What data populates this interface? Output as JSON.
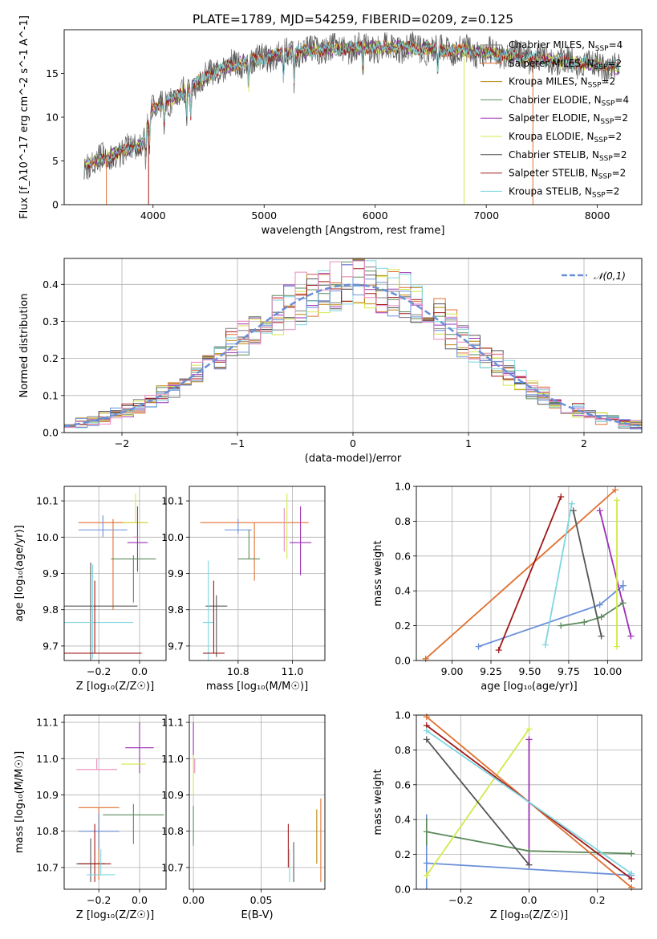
{
  "colors": {
    "Chabrier MILES": "#7f7f7f",
    "Salpeter MILES": "#e07030",
    "Kroupa MILES": "#b8860b",
    "Chabrier ELODIE": "#5b8a5b",
    "Salpeter ELODIE": "#9b30b5",
    "Kroupa ELODIE": "#d4e84a",
    "Chabrier STELIB": "#555555",
    "Salpeter STELIB": "#a01818",
    "Kroupa STELIB": "#7fd6e0",
    "blue": "#6a8fd8",
    "pink": "#e88cc0",
    "grid": "#b0b0b0"
  },
  "chart_data": [
    {
      "id": "spectrum",
      "type": "line",
      "title": "PLATE=1789, MJD=54259, FIBERID=0209, z=0.125",
      "xlabel": "wavelength [Angstrom, rest frame]",
      "ylabel": "Flux [f_λ10^-17 erg cm^-2 s^-1 A^-1]",
      "xlim": [
        3200,
        8400
      ],
      "ylim": [
        0,
        20
      ],
      "xticks": [
        "4000",
        "5000",
        "6000",
        "7000",
        "8000"
      ],
      "yticks": [
        "0",
        "5",
        "10",
        "15"
      ],
      "grid": false,
      "legend": "right",
      "continuum": {
        "x": [
          3380,
          3500,
          3700,
          3900,
          4000,
          4200,
          4400,
          4600,
          4800,
          5000,
          5200,
          5400,
          5600,
          5800,
          6000,
          6200,
          6400,
          6600,
          6800,
          7000,
          7200,
          7400,
          7600,
          7800,
          8000,
          8200
        ],
        "y": [
          4.5,
          5.0,
          6.0,
          6.8,
          11.0,
          12.2,
          14.0,
          15.5,
          16.2,
          16.8,
          17.3,
          17.6,
          17.8,
          17.9,
          18.0,
          18.0,
          17.8,
          17.7,
          17.6,
          17.4,
          17.1,
          16.8,
          16.5,
          16.2,
          16.0,
          15.6
        ]
      },
      "series": [
        {
          "name": "Chabrier MILES",
          "nssp": "4"
        },
        {
          "name": "Salpeter MILES",
          "nssp": "2"
        },
        {
          "name": "Kroupa MILES",
          "nssp": "2"
        },
        {
          "name": "Chabrier ELODIE",
          "nssp": "4"
        },
        {
          "name": "Salpeter ELODIE",
          "nssp": "2"
        },
        {
          "name": "Kroupa ELODIE",
          "nssp": "2"
        },
        {
          "name": "Chabrier STELIB",
          "nssp": "2"
        },
        {
          "name": "Salpeter STELIB",
          "nssp": "2"
        },
        {
          "name": "Kroupa STELIB",
          "nssp": "2"
        }
      ]
    },
    {
      "id": "residuals",
      "type": "line",
      "xlabel": "(data-model)/error",
      "ylabel": "Normed distribution",
      "xlim": [
        -2.5,
        2.5
      ],
      "ylim": [
        0,
        0.47
      ],
      "xticks": [
        "−2",
        "−1",
        "0",
        "1",
        "2"
      ],
      "yticks": [
        "0.0",
        "0.1",
        "0.2",
        "0.3",
        "0.4"
      ],
      "grid": true,
      "legend": "top-right",
      "legend_label": "𝒩(0,1)",
      "normal": {
        "mu": 0,
        "sigma": 1
      },
      "bin_width": 0.1
    },
    {
      "id": "age_vs_Z",
      "type": "scatter",
      "xlabel": "Z [log₁₀(Z/Z☉)]",
      "ylabel": "age  [log₁₀(age/yr)]",
      "xlim": [
        -0.37,
        0.13
      ],
      "ylim": [
        9.66,
        10.14
      ],
      "xticks": [
        "−0.2",
        "0.0"
      ],
      "yticks": [
        "9.7",
        "9.8",
        "9.9",
        "10.0",
        "10.1"
      ],
      "grid": true,
      "points": [
        {
          "series": "Salpeter MILES",
          "x": -0.13,
          "y": 10.04,
          "xerr": 0.17,
          "yerr": [
            0.24,
            0.01
          ]
        },
        {
          "series": "blue",
          "x": -0.18,
          "y": 10.02,
          "xerr": 0.12,
          "yerr": [
            0.02,
            0.04
          ]
        },
        {
          "series": "Kroupa ELODIE",
          "x": -0.02,
          "y": 10.04,
          "xerr": 0.06,
          "yerr": [
            0.0,
            0.08
          ]
        },
        {
          "series": "Salpeter ELODIE",
          "x": -0.01,
          "y": 9.985,
          "xerr": 0.05,
          "yerr": [
            0.08,
            0.1
          ]
        },
        {
          "series": "Chabrier ELODIE",
          "x": -0.03,
          "y": 9.94,
          "xerr": 0.11,
          "yerr": [
            0.12,
            0.01
          ]
        },
        {
          "series": "pink",
          "x": -0.02,
          "y": 10.0,
          "xerr": 0.01,
          "yerr": [
            0.0,
            0.0
          ]
        },
        {
          "series": "Chabrier STELIB",
          "x": -0.24,
          "y": 9.81,
          "xerr": 0.23,
          "yerr": [
            0.15,
            0.12
          ]
        },
        {
          "series": "Kroupa STELIB",
          "x": -0.23,
          "y": 9.765,
          "xerr": 0.2,
          "yerr": [
            0.1,
            0.16
          ]
        },
        {
          "series": "Salpeter STELIB",
          "x": -0.22,
          "y": 9.68,
          "xerr": 0.23,
          "yerr": [
            0.0,
            0.2
          ]
        }
      ]
    },
    {
      "id": "age_vs_mass",
      "type": "scatter",
      "xlabel": "mass [log₁₀(M/M☉)]",
      "xlim": [
        10.62,
        11.12
      ],
      "ylim": [
        9.66,
        10.14
      ],
      "xticks": [
        "10.8",
        "11.0"
      ],
      "yticks": [
        "9.7",
        "9.8",
        "9.9",
        "10.0",
        "10.1"
      ],
      "grid": true,
      "points": [
        {
          "series": "Salpeter MILES",
          "x": 10.86,
          "y": 10.04,
          "xerr": 0.2,
          "yerr": [
            0.16,
            0.0
          ]
        },
        {
          "series": "blue",
          "x": 10.8,
          "y": 10.02,
          "xerr": 0.05,
          "yerr": [
            0.01,
            0.03
          ]
        },
        {
          "series": "Chabrier ELODIE",
          "x": 10.84,
          "y": 9.94,
          "xerr": 0.04,
          "yerr": [
            0.0,
            0.08
          ]
        },
        {
          "series": "Kroupa ELODIE",
          "x": 10.98,
          "y": 10.04,
          "xerr": 0.0,
          "yerr": [
            0.1,
            0.08
          ]
        },
        {
          "series": "pink",
          "x": 10.97,
          "y": 10.04,
          "xerr": 0.0,
          "yerr": [
            0.08,
            0.04
          ]
        },
        {
          "series": "Salpeter ELODIE",
          "x": 11.03,
          "y": 9.985,
          "xerr": 0.04,
          "yerr": [
            0.09,
            0.1
          ]
        },
        {
          "series": "Chabrier STELIB",
          "x": 10.72,
          "y": 9.81,
          "xerr": 0.04,
          "yerr": [
            0.14,
            0.03
          ]
        },
        {
          "series": "Kroupa STELIB",
          "x": 10.69,
          "y": 9.765,
          "xerr": 0.02,
          "yerr": [
            0.12,
            0.17
          ]
        },
        {
          "series": "Salpeter STELIB",
          "x": 10.71,
          "y": 9.68,
          "xerr": 0.04,
          "yerr": [
            0.0,
            0.2
          ]
        }
      ]
    },
    {
      "id": "weight_vs_age",
      "type": "line",
      "xlabel": "age  [log₁₀(age/yr)]",
      "ylabel": "mass weight",
      "xlim": [
        8.77,
        10.22
      ],
      "ylim": [
        0,
        1
      ],
      "xticks": [
        "9.00",
        "9.25",
        "9.50",
        "9.75",
        "10.00"
      ],
      "yticks": [
        "0.0",
        "0.2",
        "0.4",
        "0.6",
        "0.8",
        "1.0"
      ],
      "grid": true,
      "series": [
        {
          "name": "Salpeter MILES",
          "x": [
            8.83,
            10.05
          ],
          "y": [
            0.01,
            0.98
          ],
          "yerr": [
            0,
            0
          ]
        },
        {
          "name": "blue",
          "x": [
            9.17,
            9.95,
            10.1
          ],
          "y": [
            0.08,
            0.32,
            0.43
          ],
          "yerr": [
            0,
            0,
            0.03
          ]
        },
        {
          "name": "Chabrier ELODIE",
          "x": [
            9.7,
            9.85,
            9.96,
            10.1
          ],
          "y": [
            0.2,
            0.22,
            0.25,
            0.33
          ],
          "yerr": [
            0,
            0,
            0,
            0
          ]
        },
        {
          "name": "Salpeter ELODIE",
          "x": [
            9.95,
            10.15
          ],
          "y": [
            0.86,
            0.14
          ],
          "yerr": [
            0,
            0
          ]
        },
        {
          "name": "Kroupa ELODIE",
          "x": [
            10.06,
            10.06
          ],
          "y": [
            0.92,
            0.08
          ],
          "yerr": [
            0,
            0
          ]
        },
        {
          "name": "Kroupa STELIB",
          "x": [
            9.6,
            9.77
          ],
          "y": [
            0.09,
            0.9
          ],
          "yerr": [
            0,
            0
          ]
        },
        {
          "name": "Chabrier STELIB",
          "x": [
            9.78,
            9.96
          ],
          "y": [
            0.86,
            0.14
          ],
          "yerr": [
            0,
            0
          ]
        },
        {
          "name": "Salpeter STELIB",
          "x": [
            9.3,
            9.7
          ],
          "y": [
            0.06,
            0.94
          ],
          "yerr": [
            0,
            0
          ]
        }
      ]
    },
    {
      "id": "mass_vs_Z",
      "type": "scatter",
      "xlabel": "Z [log₁₀(Z/Z☉)]",
      "ylabel": "mass [log₁₀(M/M☉)]",
      "xlim": [
        -0.37,
        0.13
      ],
      "ylim": [
        10.64,
        11.12
      ],
      "xticks": [
        "−0.2",
        "0.0"
      ],
      "yticks": [
        "10.7",
        "10.8",
        "10.9",
        "11.0",
        "11.1"
      ],
      "grid": true,
      "points": [
        {
          "series": "Salpeter ELODIE",
          "x": 0.0,
          "y": 11.03,
          "xerr": 0.07,
          "yerr": [
            0.07,
            0.07
          ]
        },
        {
          "series": "Kroupa ELODIE",
          "x": -0.03,
          "y": 10.985,
          "xerr": 0.06,
          "yerr": [
            0.0,
            0.0
          ]
        },
        {
          "series": "pink",
          "x": -0.21,
          "y": 10.97,
          "xerr": 0.1,
          "yerr": [
            0.0,
            0.03
          ]
        },
        {
          "series": "Salpeter MILES",
          "x": -0.2,
          "y": 10.865,
          "xerr": 0.1,
          "yerr": [
            0.2,
            0.0
          ]
        },
        {
          "series": "Chabrier ELODIE",
          "x": -0.03,
          "y": 10.845,
          "xerr": 0.15,
          "yerr": [
            0.08,
            0.03
          ]
        },
        {
          "series": "blue",
          "x": -0.2,
          "y": 10.8,
          "xerr": 0.1,
          "yerr": [
            0.05,
            0.05
          ]
        },
        {
          "series": "Chabrier STELIB",
          "x": -0.24,
          "y": 10.71,
          "xerr": 0.07,
          "yerr": [
            0.05,
            0.07
          ]
        },
        {
          "series": "Salpeter STELIB",
          "x": -0.22,
          "y": 10.71,
          "xerr": 0.08,
          "yerr": [
            0.05,
            0.11
          ]
        },
        {
          "series": "Kroupa STELIB",
          "x": -0.19,
          "y": 10.68,
          "xerr": 0.07,
          "yerr": [
            0.0,
            0.07
          ]
        }
      ]
    },
    {
      "id": "mass_vs_EBV",
      "type": "scatter",
      "xlabel": "E(B-V)",
      "xlim": [
        -0.003,
        0.097
      ],
      "ylim": [
        10.64,
        11.12
      ],
      "xticks": [
        "0.00",
        "0.05"
      ],
      "yticks": [
        "10.7",
        "10.8",
        "10.9",
        "11.0",
        "11.1"
      ],
      "grid": true,
      "points": [
        {
          "series": "Salpeter ELODIE",
          "x": 0.0,
          "y": 11.03,
          "xerr": 0,
          "yerr": [
            0.07,
            0.07
          ]
        },
        {
          "series": "Kroupa ELODIE",
          "x": 0.0,
          "y": 10.96,
          "xerr": 0,
          "yerr": [
            0.06,
            0.05
          ]
        },
        {
          "series": "Chabrier ELODIE",
          "x": 0.0,
          "y": 10.84,
          "xerr": 0,
          "yerr": [
            0.08,
            0.03
          ]
        },
        {
          "series": "pink",
          "x": 0.001,
          "y": 10.98,
          "xerr": 0,
          "yerr": [
            0.02,
            0.02
          ]
        },
        {
          "series": "Salpeter STELIB",
          "x": 0.07,
          "y": 10.74,
          "xerr": 0,
          "yerr": [
            0.04,
            0.08
          ]
        },
        {
          "series": "Chabrier STELIB",
          "x": 0.074,
          "y": 10.71,
          "xerr": 0,
          "yerr": [
            0.05,
            0.06
          ]
        },
        {
          "series": "Kroupa STELIB",
          "x": 0.071,
          "y": 10.7,
          "xerr": 0,
          "yerr": [
            0.04,
            0.05
          ]
        },
        {
          "series": "Salpeter MILES",
          "x": 0.094,
          "y": 10.78,
          "xerr": 0,
          "yerr": [
            0.12,
            0.11
          ]
        },
        {
          "series": "Kroupa MILES",
          "x": 0.091,
          "y": 10.79,
          "xerr": 0,
          "yerr": [
            0.08,
            0.07
          ]
        }
      ]
    },
    {
      "id": "weight_vs_Z",
      "type": "line",
      "xlabel": "Z [log₁₀(Z/Z☉)]",
      "ylabel": "mass weight",
      "xlim": [
        -0.33,
        0.33
      ],
      "ylim": [
        0,
        1
      ],
      "xticks": [
        "−0.2",
        "0.0",
        "0.2"
      ],
      "yticks": [
        "0.0",
        "0.2",
        "0.4",
        "0.6",
        "0.8",
        "1.0"
      ],
      "grid": true,
      "series": [
        {
          "name": "blue",
          "x": [
            -0.3,
            0.3
          ],
          "y": [
            0.15,
            0.08
          ],
          "yerr": [
            0.28,
            0
          ]
        },
        {
          "name": "Chabrier ELODIE",
          "x": [
            -0.3,
            0.0,
            0.3
          ],
          "y": [
            0.33,
            0.22,
            0.205
          ],
          "yerr": [
            0.08,
            0,
            0
          ]
        },
        {
          "name": "Kroupa ELODIE",
          "x": [
            -0.3,
            0.0
          ],
          "y": [
            0.08,
            0.92
          ],
          "yerr": [
            0,
            0
          ]
        },
        {
          "name": "Salpeter ELODIE",
          "x": [
            0.0,
            0.0
          ],
          "y": [
            0.86,
            0.14
          ],
          "yerr": [
            0,
            0
          ]
        },
        {
          "name": "Chabrier STELIB",
          "x": [
            -0.3,
            0.0
          ],
          "y": [
            0.86,
            0.14
          ],
          "yerr": [
            0,
            0
          ]
        },
        {
          "name": "Salpeter MILES",
          "x": [
            -0.3,
            0.3
          ],
          "y": [
            0.99,
            0.01
          ],
          "yerr": [
            0,
            0
          ]
        },
        {
          "name": "Salpeter STELIB",
          "x": [
            -0.3,
            0.3
          ],
          "y": [
            0.94,
            0.06
          ],
          "yerr": [
            0,
            0
          ]
        },
        {
          "name": "Kroupa STELIB",
          "x": [
            -0.3,
            0.3
          ],
          "y": [
            0.91,
            0.09
          ],
          "yerr": [
            0,
            0
          ]
        }
      ]
    }
  ]
}
